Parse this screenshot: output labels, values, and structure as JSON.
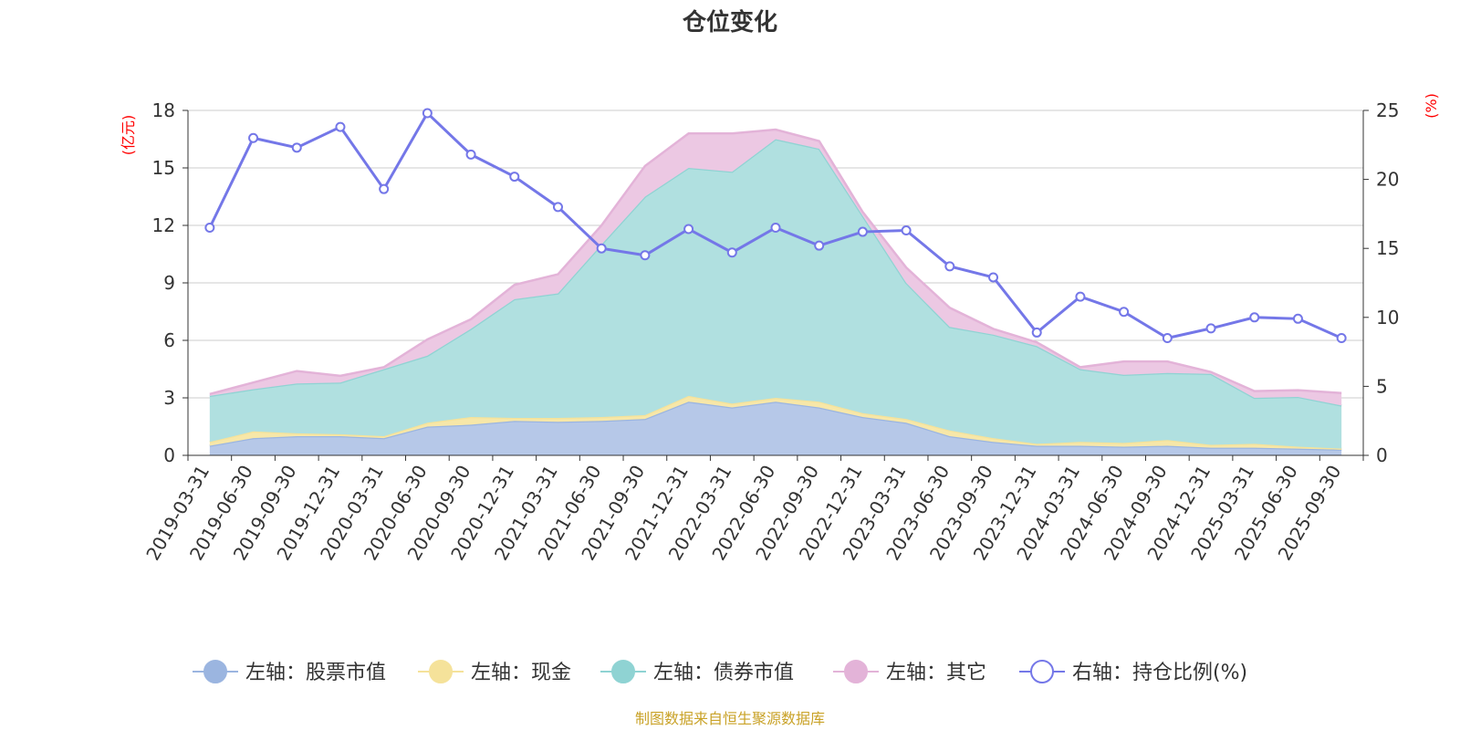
{
  "chart_data": {
    "type": "area",
    "title": "仓位变化",
    "left_axis_unit": "(亿元)",
    "right_axis_unit": "(%)",
    "left_ylim": [
      0,
      18
    ],
    "left_ticks": [
      "0",
      "3",
      "6",
      "9",
      "12",
      "15",
      "18"
    ],
    "right_ylim": [
      0,
      25
    ],
    "right_ticks": [
      "0",
      "5",
      "10",
      "15",
      "20",
      "25"
    ],
    "categories": [
      "2019-03-31",
      "2019-06-30",
      "2019-09-30",
      "2019-12-31",
      "2020-03-31",
      "2020-06-30",
      "2020-09-30",
      "2020-12-31",
      "2021-03-31",
      "2021-06-30",
      "2021-09-30",
      "2021-12-31",
      "2022-03-31",
      "2022-06-30",
      "2022-09-30",
      "2022-12-31",
      "2023-03-31",
      "2023-06-30",
      "2023-09-30",
      "2023-12-31",
      "2024-03-31",
      "2024-06-30",
      "2024-09-30",
      "2024-12-31",
      "2025-03-31",
      "2025-06-30",
      "2025-09-30"
    ],
    "stacked_series": [
      {
        "name": "左轴：股票市值",
        "color": "#9bb5e0",
        "fill": "#b6c8e8",
        "values": [
          0.5,
          0.9,
          1.0,
          1.0,
          0.9,
          1.5,
          1.6,
          1.8,
          1.75,
          1.8,
          1.9,
          2.8,
          2.5,
          2.8,
          2.5,
          2.0,
          1.7,
          1.0,
          0.7,
          0.5,
          0.5,
          0.45,
          0.5,
          0.4,
          0.4,
          0.35,
          0.3
        ]
      },
      {
        "name": "左轴：现金",
        "color": "#f5e29a",
        "fill": "#f7e7a8",
        "values": [
          0.2,
          0.35,
          0.15,
          0.1,
          0.1,
          0.2,
          0.4,
          0.15,
          0.2,
          0.2,
          0.2,
          0.3,
          0.2,
          0.2,
          0.3,
          0.2,
          0.2,
          0.3,
          0.2,
          0.1,
          0.2,
          0.2,
          0.3,
          0.15,
          0.2,
          0.1,
          0.05
        ]
      },
      {
        "name": "左轴：债券市值",
        "color": "#8fd3d3",
        "fill": "#b0e0e0",
        "values": [
          2.4,
          2.2,
          2.6,
          2.7,
          3.5,
          3.5,
          4.6,
          6.2,
          6.5,
          9.0,
          11.4,
          11.9,
          12.1,
          13.5,
          13.2,
          10.3,
          7.1,
          5.4,
          5.4,
          5.1,
          3.8,
          3.55,
          3.5,
          3.7,
          2.4,
          2.6,
          2.25
        ]
      },
      {
        "name": "左轴：其它",
        "color": "#e3b3d8",
        "fill": "#ecc8e3",
        "values": [
          0.1,
          0.35,
          0.65,
          0.35,
          0.1,
          0.85,
          0.5,
          0.75,
          1.0,
          1.0,
          1.6,
          1.8,
          2.0,
          0.5,
          0.4,
          0.2,
          0.8,
          1.0,
          0.3,
          0.2,
          0.1,
          0.7,
          0.6,
          0.1,
          0.35,
          0.35,
          0.65
        ]
      }
    ],
    "line_series": {
      "name": "右轴：持仓比例(%)",
      "color": "#7477e8",
      "values": [
        16.5,
        23,
        22.3,
        23.8,
        19.3,
        24.8,
        21.8,
        20.2,
        18,
        15,
        14.5,
        16.4,
        14.7,
        16.5,
        15.2,
        16.2,
        16.3,
        13.7,
        12.9,
        8.9,
        11.5,
        10.4,
        8.5,
        9.2,
        10,
        9.9,
        8.5
      ]
    },
    "legend_position": "bottom",
    "grid": true,
    "source_note": "制图数据来自恒生聚源数据库"
  }
}
